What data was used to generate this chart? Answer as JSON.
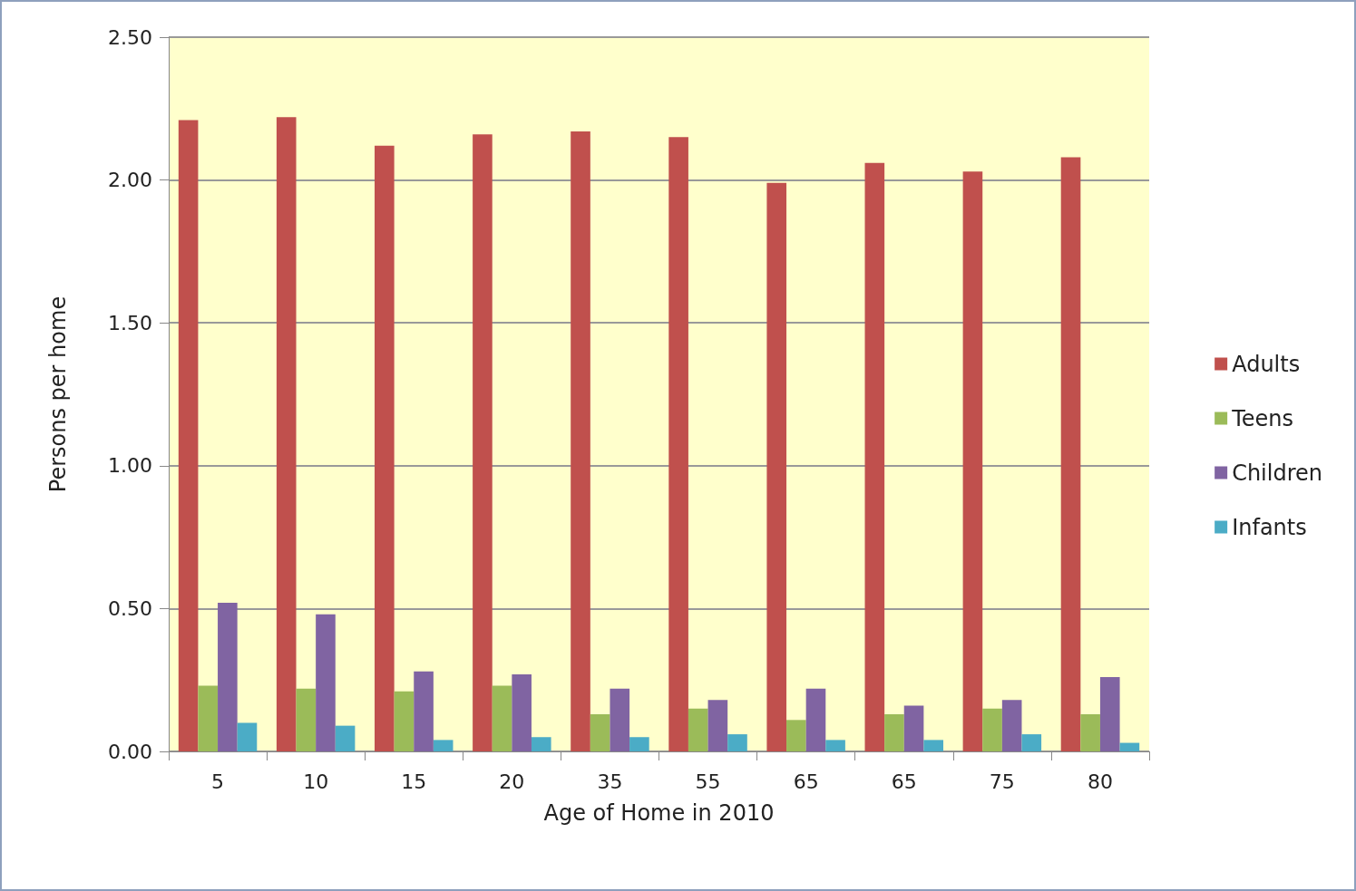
{
  "chart_data": {
    "type": "bar",
    "xlabel": "Age of Home in 2010",
    "ylabel": "Persons per home",
    "categories": [
      "5",
      "10",
      "15",
      "20",
      "35",
      "55",
      "65",
      "65",
      "75",
      "80"
    ],
    "series": [
      {
        "name": "Adults",
        "color": "#c0504d",
        "values": [
          2.21,
          2.22,
          2.12,
          2.16,
          2.17,
          2.15,
          1.99,
          2.06,
          2.03,
          2.08
        ]
      },
      {
        "name": "Teens",
        "color": "#9bbb59",
        "values": [
          0.23,
          0.22,
          0.21,
          0.23,
          0.13,
          0.15,
          0.11,
          0.13,
          0.15,
          0.13
        ]
      },
      {
        "name": "Children",
        "color": "#8064a2",
        "values": [
          0.52,
          0.48,
          0.28,
          0.27,
          0.22,
          0.18,
          0.22,
          0.16,
          0.18,
          0.26
        ]
      },
      {
        "name": "Infants",
        "color": "#4bacc6",
        "values": [
          0.1,
          0.09,
          0.04,
          0.05,
          0.05,
          0.06,
          0.04,
          0.04,
          0.06,
          0.03
        ]
      }
    ],
    "ylim": [
      0,
      2.5
    ],
    "yticks": [
      {
        "value": 0,
        "label": "0.00"
      },
      {
        "value": 0.5,
        "label": "0.50"
      },
      {
        "value": 1,
        "label": "1.00"
      },
      {
        "value": 1.5,
        "label": "1.50"
      },
      {
        "value": 2,
        "label": "2.00"
      },
      {
        "value": 2.5,
        "label": "2.50"
      }
    ],
    "grid": "y",
    "legend": "right"
  }
}
